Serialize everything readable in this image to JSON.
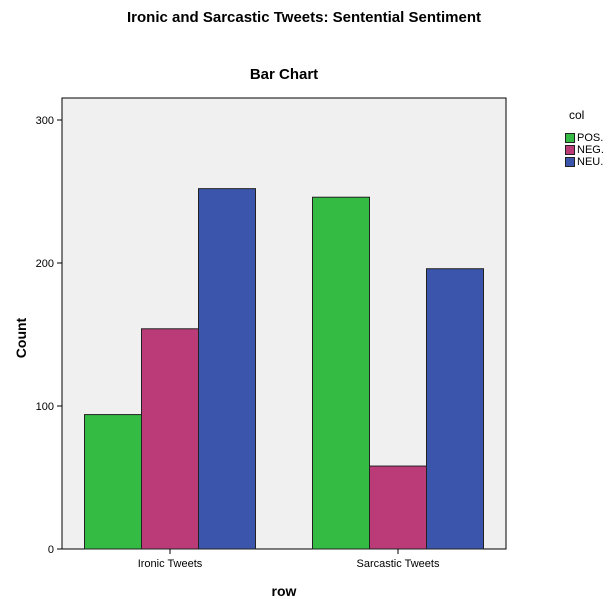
{
  "chart_data": {
    "type": "bar",
    "title": "Ironic and Sarcastic Tweets: Sentential Sentiment",
    "subtitle": "Bar Chart",
    "xlabel": "row",
    "ylabel": "Count",
    "categories": [
      "Ironic Tweets",
      "Sarcastic Tweets"
    ],
    "series": [
      {
        "name": "POS.",
        "color": "#33bb44",
        "values": [
          94,
          246
        ]
      },
      {
        "name": "NEG.",
        "color": "#bb3b79",
        "values": [
          154,
          58
        ]
      },
      {
        "name": "NEU.",
        "color": "#3b55ad",
        "values": [
          252,
          196
        ]
      }
    ],
    "ylim": [
      0,
      300
    ],
    "yticks": [
      "0",
      "100",
      "200",
      "300"
    ],
    "legend_title": "col",
    "legend_position": "top-right",
    "plot_background": "#f0f0f0",
    "grid": false
  }
}
